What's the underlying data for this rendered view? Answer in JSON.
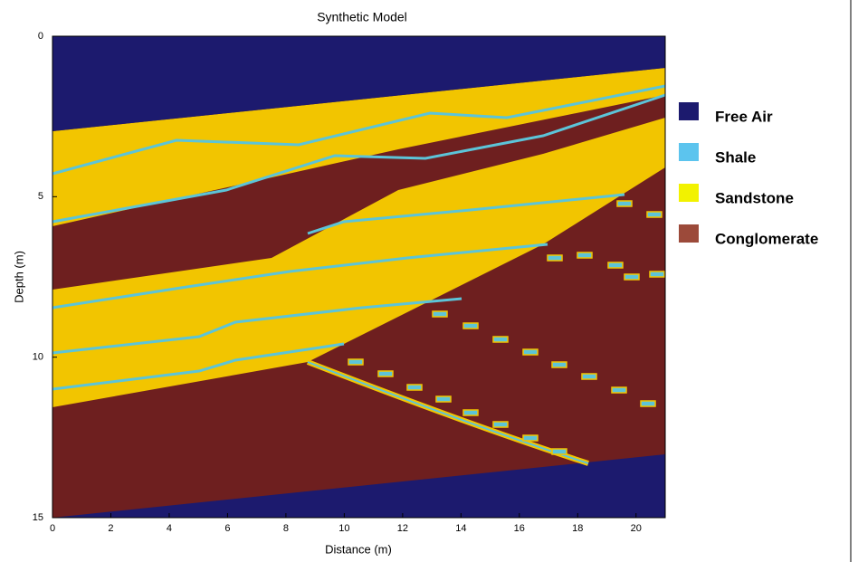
{
  "chart_data": {
    "type": "section",
    "title": "Synthetic Model",
    "x_label": "Distance (m)",
    "y_label": "Depth (m)",
    "xlim": [
      0,
      21
    ],
    "xticks": [
      0,
      2,
      4,
      6,
      8,
      10,
      12,
      14,
      16,
      18,
      20
    ],
    "ylim": [
      0,
      15
    ],
    "yticks": [
      0,
      5,
      10,
      15
    ],
    "y_inverted": true,
    "series": [
      {
        "name": "Free Air",
        "color": "#1c1a6e"
      },
      {
        "name": "Shale",
        "color": "#5cc4ee"
      },
      {
        "name": "Sandstone",
        "color": "#f2f200"
      },
      {
        "name": "Conglomerate",
        "color": "#9c4a3a"
      }
    ]
  }
}
